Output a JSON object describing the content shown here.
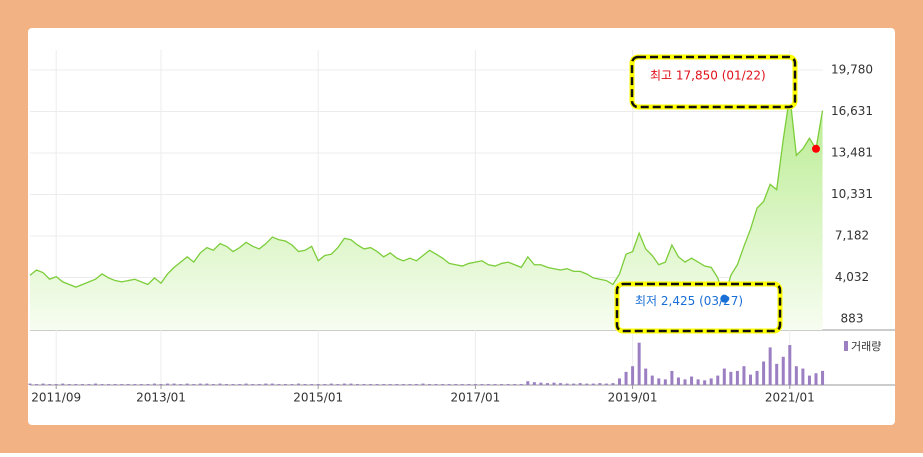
{
  "chart_data": {
    "type": "area",
    "color": "#7ccd3a",
    "x": [
      "2011/05",
      "2011/06",
      "2011/07",
      "2011/08",
      "2011/09",
      "2011/10",
      "2011/11",
      "2011/12",
      "2012/01",
      "2012/02",
      "2012/03",
      "2012/04",
      "2012/05",
      "2012/06",
      "2012/07",
      "2012/08",
      "2012/09",
      "2012/10",
      "2012/11",
      "2012/12",
      "2013/01",
      "2013/02",
      "2013/03",
      "2013/04",
      "2013/05",
      "2013/06",
      "2013/07",
      "2013/08",
      "2013/09",
      "2013/10",
      "2013/11",
      "2013/12",
      "2014/01",
      "2014/02",
      "2014/03",
      "2014/04",
      "2014/05",
      "2014/06",
      "2014/07",
      "2014/08",
      "2014/09",
      "2014/10",
      "2014/11",
      "2014/12",
      "2015/01",
      "2015/02",
      "2015/03",
      "2015/04",
      "2015/05",
      "2015/06",
      "2015/07",
      "2015/08",
      "2015/09",
      "2015/10",
      "2015/11",
      "2015/12",
      "2016/01",
      "2016/02",
      "2016/03",
      "2016/04",
      "2016/05",
      "2016/06",
      "2016/07",
      "2016/08",
      "2016/09",
      "2016/10",
      "2016/11",
      "2016/12",
      "2017/01",
      "2017/02",
      "2017/03",
      "2017/04",
      "2017/05",
      "2017/06",
      "2017/07",
      "2017/08",
      "2017/09",
      "2017/10",
      "2017/11",
      "2017/12",
      "2018/01",
      "2018/02",
      "2018/03",
      "2018/04",
      "2018/05",
      "2018/06",
      "2018/07",
      "2018/08",
      "2018/09",
      "2018/10",
      "2018/11",
      "2018/12",
      "2019/01",
      "2019/02",
      "2019/03",
      "2019/04",
      "2019/05",
      "2019/06",
      "2019/07",
      "2019/08",
      "2019/09",
      "2019/10",
      "2019/11",
      "2019/12",
      "2020/01",
      "2020/02",
      "2020/03",
      "2020/04",
      "2020/05",
      "2020/06",
      "2020/07",
      "2020/08",
      "2020/09",
      "2020/10",
      "2020/11",
      "2020/12",
      "2021/01",
      "2021/02",
      "2021/03",
      "2021/04",
      "2021/05",
      "2021/06"
    ],
    "values": [
      4200,
      4600,
      4400,
      3900,
      4100,
      3700,
      3500,
      3300,
      3500,
      3700,
      3900,
      4300,
      4000,
      3800,
      3700,
      3800,
      3900,
      3700,
      3500,
      4000,
      3600,
      4300,
      4800,
      5200,
      5600,
      5200,
      5900,
      6300,
      6100,
      6600,
      6400,
      6000,
      6300,
      6700,
      6400,
      6200,
      6600,
      7100,
      6900,
      6800,
      6500,
      6000,
      6100,
      6400,
      5300,
      5700,
      5800,
      6300,
      7000,
      6900,
      6500,
      6200,
      6300,
      6000,
      5600,
      5900,
      5500,
      5300,
      5500,
      5300,
      5700,
      6100,
      5800,
      5500,
      5100,
      5000,
      4900,
      5100,
      5200,
      5300,
      5000,
      4900,
      5100,
      5200,
      5000,
      4800,
      5600,
      5000,
      5000,
      4800,
      4700,
      4600,
      4700,
      4500,
      4500,
      4300,
      4000,
      3900,
      3800,
      3500,
      4300,
      5800,
      6000,
      7400,
      6200,
      5700,
      5000,
      5200,
      6500,
      5600,
      5200,
      5500,
      5200,
      4900,
      4800,
      4000,
      2425,
      4200,
      5000,
      6400,
      7700,
      9300,
      9800,
      11100,
      10700,
      14500,
      17850,
      13300,
      13800,
      14600,
      13800,
      16700
    ],
    "volume_name": "거래량",
    "volume_color": "#9b7fc2",
    "volume": [
      3,
      2,
      3,
      2,
      2,
      3,
      2,
      2,
      2,
      2,
      3,
      2,
      2,
      2,
      2,
      2,
      2,
      2,
      2,
      3,
      2,
      3,
      3,
      2,
      3,
      2,
      3,
      3,
      2,
      3,
      2,
      2,
      2,
      3,
      2,
      2,
      3,
      3,
      2,
      2,
      2,
      3,
      2,
      2,
      2,
      2,
      3,
      2,
      3,
      3,
      2,
      2,
      2,
      2,
      2,
      2,
      2,
      2,
      2,
      2,
      3,
      2,
      2,
      2,
      2,
      2,
      2,
      2,
      2,
      2,
      2,
      2,
      2,
      2,
      2,
      2,
      8,
      6,
      5,
      4,
      5,
      4,
      3,
      3,
      4,
      3,
      3,
      4,
      3,
      4,
      14,
      28,
      40,
      90,
      35,
      20,
      14,
      12,
      30,
      16,
      12,
      18,
      12,
      10,
      14,
      20,
      35,
      28,
      30,
      40,
      22,
      30,
      50,
      80,
      45,
      60,
      85,
      40,
      35,
      20,
      25,
      30
    ],
    "vlim": [
      0,
      100
    ],
    "ylim": [
      48,
      21298
    ],
    "yticks": [
      {
        "value": 883,
        "label": "883"
      },
      {
        "value": 4032,
        "label": "4,032"
      },
      {
        "value": 7182,
        "label": "7,182"
      },
      {
        "value": 10331,
        "label": "10,331"
      },
      {
        "value": 13481,
        "label": "13,481"
      },
      {
        "value": 16631,
        "label": "16,631"
      },
      {
        "value": 19780,
        "label": "19,780"
      }
    ],
    "xticks": [
      "2011/09",
      "2013/01",
      "2015/01",
      "2017/01",
      "2019/01",
      "2021/01"
    ],
    "grid": true,
    "high_label": "최고 17,850 (01/22)",
    "low_label": "최저 2,425 (03/27)",
    "high_index": 120,
    "low_index": 106
  }
}
